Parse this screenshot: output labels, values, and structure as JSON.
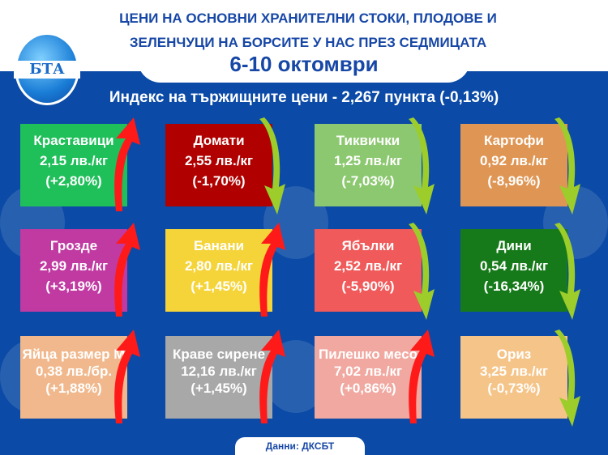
{
  "header": {
    "title_line1": "ЦЕНИ НА ОСНОВНИ ХРАНИТЕЛНИ СТОКИ, ПЛОДОВЕ И",
    "title_line2": "ЗЕЛЕНЧУЦИ НА БОРСИТЕ У НАС ПРЕЗ СЕДМИЦАТА",
    "date": "6-10 октомври",
    "logo": "БТА"
  },
  "index_text": "Индекс на тържищните цени - 2,267 пункта (-0,13%)",
  "colors": {
    "up": "#ff1a1a",
    "down": "#9ccd2a",
    "background": "#0b4aa6"
  },
  "items": [
    {
      "name": "Краставици",
      "price": "2,15 лв./кг",
      "change": "(+2,80%)",
      "trend": "up",
      "color": "#1fbf5a"
    },
    {
      "name": "Домати",
      "price": "2,55 лв./кг",
      "change": "(-1,70%)",
      "trend": "down",
      "color": "#b00000"
    },
    {
      "name": "Тиквички",
      "price": "1,25 лв./кг",
      "change": "(-7,03%)",
      "trend": "down",
      "color": "#8cc870"
    },
    {
      "name": "Картофи",
      "price": "0,92 лв./кг",
      "change": "(-8,96%)",
      "trend": "down",
      "color": "#df9655"
    },
    {
      "name": "Грозде",
      "price": "2,99 лв./кг",
      "change": "(+3,19%)",
      "trend": "up",
      "color": "#c03aa2"
    },
    {
      "name": "Банани",
      "price": "2,80 лв./кг",
      "change": "(+1,45%)",
      "trend": "up",
      "color": "#f5d43a"
    },
    {
      "name": "Ябълки",
      "price": "2,52 лв./кг",
      "change": "(-5,90%)",
      "trend": "down",
      "color": "#f05a5a"
    },
    {
      "name": "Дини",
      "price": "0,54 лв./кг",
      "change": "(-16,34%)",
      "trend": "down",
      "color": "#177a1a"
    },
    {
      "name": "Яйца размер М",
      "price": "0,38 лв./бр.",
      "change": "(+1,88%)",
      "trend": "up",
      "color": "#f0b88c"
    },
    {
      "name": "Краве сирене",
      "price": "12,16 лв./кг",
      "change": "(+1,45%)",
      "trend": "up",
      "color": "#a8a8a8"
    },
    {
      "name": "Пилешко месо",
      "price": "7,02 лв./кг",
      "change": "(+0,86%)",
      "trend": "up",
      "color": "#f0a8a0"
    },
    {
      "name": "Ориз",
      "price": "3,25 лв./кг",
      "change": "(-0,73%)",
      "trend": "down",
      "color": "#f5c488"
    }
  ],
  "source": "Данни: ДКСБТ"
}
